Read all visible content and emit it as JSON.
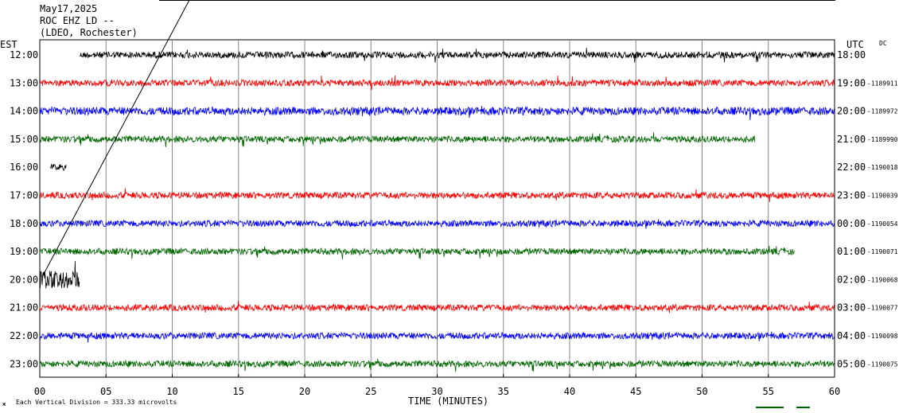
{
  "header": {
    "date": "May17,2025",
    "station": "ROC EHZ LD --",
    "network": "(LDEO, Rochester)"
  },
  "axes": {
    "left_label": "EST",
    "right_label": "UTC",
    "dc_label": "DC",
    "x_label": "TIME (MINUTES)",
    "footer_note": "Each Vertical Division =  333.33 microvolts"
  },
  "chart_data": {
    "type": "line",
    "title": "ROC EHZ LD --",
    "xlabel": "TIME (MINUTES)",
    "xlim": [
      0,
      60
    ],
    "x_ticks": [
      "00",
      "05",
      "10",
      "15",
      "20",
      "25",
      "30",
      "35",
      "40",
      "45",
      "50",
      "55",
      "60"
    ],
    "grid_vertical": true,
    "rows": [
      {
        "est": "12:00",
        "utc": "18:00",
        "dc": "",
        "color": "#000000",
        "start": 3,
        "end": 60,
        "amp": 4
      },
      {
        "est": "13:00",
        "utc": "19:00",
        "dc": "-1189911",
        "color": "#ff0000",
        "start": 0,
        "end": 60,
        "amp": 4
      },
      {
        "est": "14:00",
        "utc": "20:00",
        "dc": "-1189972",
        "color": "#0000ff",
        "start": 0,
        "end": 60,
        "amp": 5
      },
      {
        "est": "15:00",
        "utc": "21:00",
        "dc": "-1189990",
        "color": "#006600",
        "start": 0,
        "end": 54,
        "amp": 4
      },
      {
        "est": "16:00",
        "utc": "22:00",
        "dc": "-1190018",
        "color": "#000000",
        "start": 0.8,
        "end": 2,
        "amp": 4
      },
      {
        "est": "17:00",
        "utc": "23:00",
        "dc": "-1190039",
        "color": "#ff0000",
        "start": 0,
        "end": 60,
        "amp": 4
      },
      {
        "est": "18:00",
        "utc": "00:00",
        "dc": "-1190054",
        "color": "#0000ff",
        "start": 0,
        "end": 60,
        "amp": 4
      },
      {
        "est": "19:00",
        "utc": "01:00",
        "dc": "-1190071",
        "color": "#006600",
        "start": 0,
        "end": 57,
        "amp": 4
      },
      {
        "est": "20:00",
        "utc": "02:00",
        "dc": "-1190068",
        "color": "#000000",
        "start": 0,
        "end": 3,
        "amp": 11
      },
      {
        "est": "21:00",
        "utc": "03:00",
        "dc": "-1190077",
        "color": "#ff0000",
        "start": 0,
        "end": 60,
        "amp": 4
      },
      {
        "est": "22:00",
        "utc": "04:00",
        "dc": "-1190098",
        "color": "#0000ff",
        "start": 0,
        "end": 60,
        "amp": 4
      },
      {
        "est": "23:00",
        "utc": "05:00",
        "dc": "-1190075",
        "color": "#006600",
        "start": 0,
        "end": 60,
        "amp": 4
      }
    ]
  }
}
